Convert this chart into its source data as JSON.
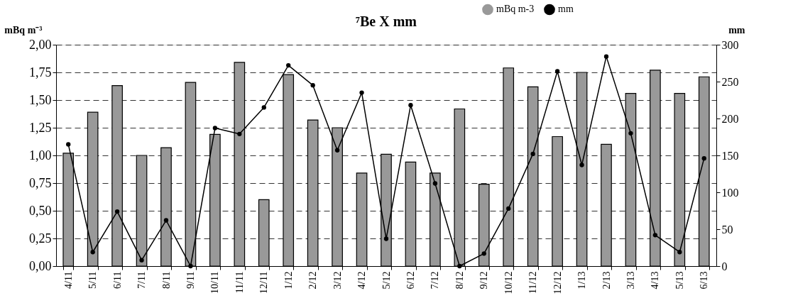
{
  "chart_data": {
    "type": "bar",
    "title": "⁷Be X mm",
    "ylabel": "mBq m⁻³",
    "y2label": "mm",
    "categories": [
      "4/11",
      "5/11",
      "6/11",
      "7/11",
      "8/11",
      "9/11",
      "10/11",
      "11/11",
      "12/11",
      "1/12",
      "2/12",
      "3/12",
      "4/12",
      "5/12",
      "6/12",
      "7/12",
      "8/12",
      "9/12",
      "10/12",
      "11/12",
      "12/12",
      "1/13",
      "2/13",
      "3/13",
      "4/13",
      "5/13",
      "6/13"
    ],
    "series": [
      {
        "name": "mBq m-3",
        "type": "bar",
        "color": "#999999",
        "values": [
          1.02,
          1.39,
          1.63,
          1.0,
          1.07,
          1.66,
          1.19,
          1.84,
          0.6,
          1.73,
          1.32,
          1.25,
          0.84,
          1.01,
          0.94,
          0.84,
          1.42,
          0.74,
          1.79,
          1.62,
          1.17,
          1.75,
          1.1,
          1.56,
          1.77,
          1.56,
          1.71
        ]
      },
      {
        "name": "mm",
        "type": "line",
        "axis": "y2",
        "color": "#000000",
        "marker": "circle",
        "values": [
          165,
          19,
          74,
          8,
          62,
          0,
          187,
          179,
          215,
          272,
          245,
          157,
          235,
          37,
          218,
          112,
          0,
          17,
          78,
          152,
          264,
          137,
          284,
          180,
          42,
          19,
          146
        ]
      }
    ],
    "ylim": [
      0,
      2
    ],
    "yticks": [
      {
        "value": 0,
        "label": "0,00"
      },
      {
        "value": 0.25,
        "label": "0,25"
      },
      {
        "value": 0.5,
        "label": "0,50"
      },
      {
        "value": 0.75,
        "label": "0,75"
      },
      {
        "value": 1,
        "label": "1,00"
      },
      {
        "value": 1.25,
        "label": "1,25"
      },
      {
        "value": 1.5,
        "label": "1,50"
      },
      {
        "value": 1.75,
        "label": "1,75"
      },
      {
        "value": 2,
        "label": "2,00"
      }
    ],
    "y2lim": [
      0,
      300
    ],
    "y2ticks": [
      0,
      50,
      100,
      150,
      200,
      250,
      300
    ],
    "grid": "y",
    "legend": "top right",
    "line_style": "solid"
  }
}
